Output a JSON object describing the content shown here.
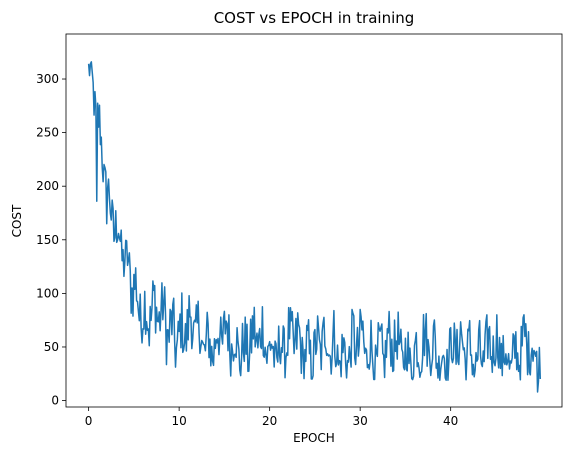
{
  "chart_data": {
    "type": "line",
    "title": "COST vs EPOCH in training",
    "xlabel": "EPOCH",
    "ylabel": "COST",
    "xlim": [
      -2.5,
      52.3
    ],
    "ylim": [
      -6,
      342
    ],
    "xticks": [
      0,
      10,
      20,
      30,
      40
    ],
    "yticks": [
      0,
      50,
      100,
      150,
      200,
      250,
      300
    ],
    "grid": false,
    "legend": "none",
    "series": [
      {
        "color": "#1f77b4",
        "points_per_epoch": 10,
        "epoch_max": 49.9,
        "trend": {
          "x": [
            0,
            1,
            2,
            3,
            4,
            5,
            6,
            7,
            8,
            10,
            12,
            15,
            20,
            25,
            30,
            35,
            40,
            45,
            49.9
          ],
          "y": [
            305,
            260,
            205,
            165,
            125,
            105,
            90,
            80,
            75,
            65,
            60,
            54,
            50,
            47,
            45,
            44,
            43,
            42,
            41
          ]
        },
        "band": {
          "x": [
            0,
            1,
            2,
            3,
            4,
            5,
            6,
            7,
            8,
            10,
            12,
            15,
            20,
            25,
            30,
            35,
            40,
            45,
            49.9
          ],
          "lower": [
            285,
            235,
            175,
            120,
            92,
            70,
            52,
            42,
            35,
            30,
            27,
            23,
            22,
            20,
            20,
            19,
            19,
            19,
            18
          ],
          "upper": [
            325,
            295,
            225,
            190,
            150,
            145,
            125,
            115,
            110,
            105,
            95,
            90,
            88,
            85,
            85,
            82,
            80,
            80,
            80
          ]
        },
        "outliers": [
          {
            "x": 0.9,
            "y": 186
          },
          {
            "x": 2.0,
            "y": 165
          },
          {
            "x": 49.6,
            "y": 8
          }
        ]
      }
    ]
  }
}
